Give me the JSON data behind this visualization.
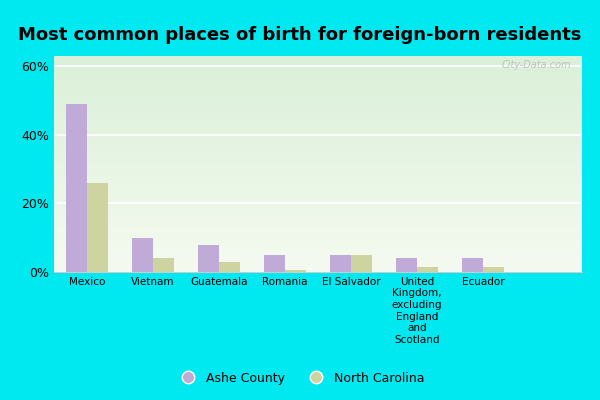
{
  "title": "Most common places of birth for foreign-born residents",
  "categories": [
    "Mexico",
    "Vietnam",
    "Guatemala",
    "Romania",
    "El Salvador",
    "United\nKingdom,\nexcluding\nEngland\nand\nScotland",
    "Ecuador"
  ],
  "ashe_county": [
    49,
    10,
    8,
    5,
    5,
    4,
    4
  ],
  "north_carolina": [
    26,
    4,
    3,
    0.5,
    5,
    1.5,
    1.5
  ],
  "ashe_color": "#c0aad8",
  "nc_color": "#cdd4a0",
  "plot_bg_color": "#e8f5e2",
  "fig_bg_color": "#00e8f0",
  "yticks": [
    0,
    20,
    40,
    60
  ],
  "ylim": [
    0,
    63
  ],
  "legend_labels": [
    "Ashe County",
    "North Carolina"
  ],
  "title_fontsize": 13,
  "watermark": "City-Data.com",
  "bar_width": 0.32
}
